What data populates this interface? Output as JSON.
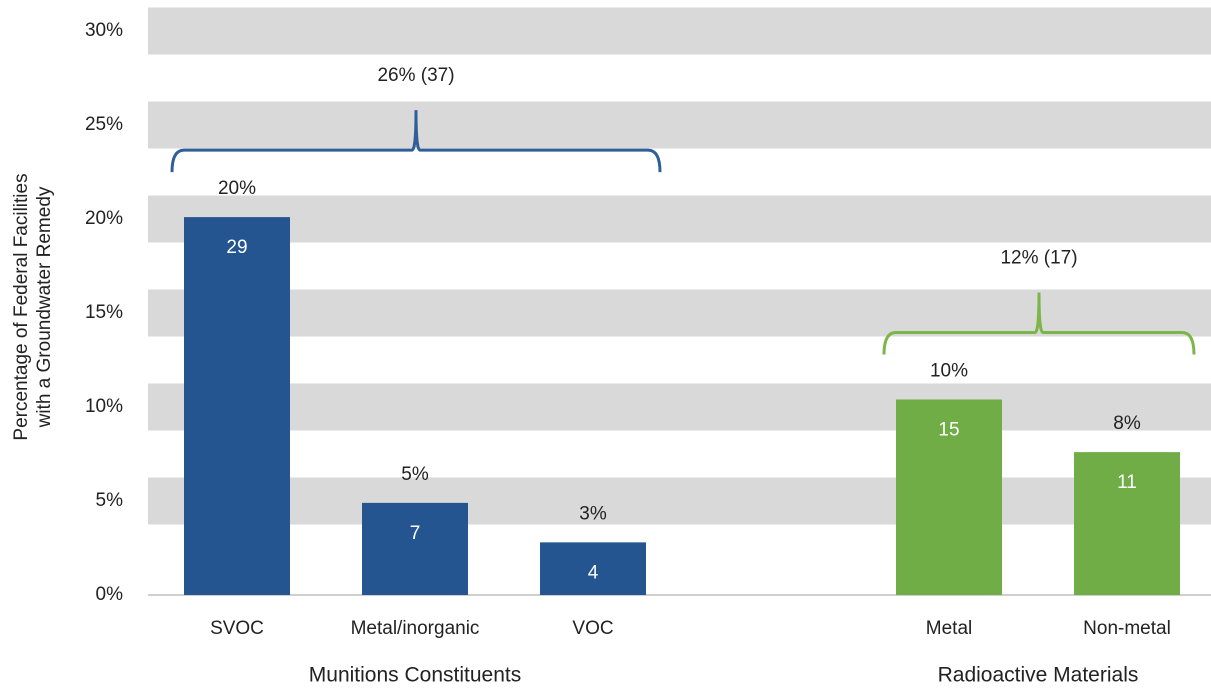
{
  "chart_data": {
    "type": "bar",
    "ylabel": [
      "Percentage of Federal Facilities",
      "with a Groundwater Remedy"
    ],
    "ylim": [
      0,
      30
    ],
    "yticks": [
      {
        "value": 0,
        "label": "0%"
      },
      {
        "value": 5,
        "label": "5%"
      },
      {
        "value": 10,
        "label": "10%"
      },
      {
        "value": 15,
        "label": "15%"
      },
      {
        "value": 20,
        "label": "20%"
      },
      {
        "value": 25,
        "label": "25%"
      },
      {
        "value": 30,
        "label": "30%"
      }
    ],
    "grid": "bands",
    "groups": [
      {
        "name": "Munitions Constituents",
        "color": "#245591",
        "bracket_color": "#2f5f99",
        "bracket_label": "26% (37)",
        "categories": [
          "SVOC",
          "Metal/inorganic",
          "VOC"
        ],
        "values": [
          20.1,
          4.9,
          2.8
        ],
        "value_labels": [
          "20%",
          "5%",
          "3%"
        ],
        "counts": [
          29,
          7,
          4
        ]
      },
      {
        "name": "Radioactive Materials",
        "color": "#70ad47",
        "bracket_color": "#7ab648",
        "bracket_label": "12% (17)",
        "categories": [
          "Metal",
          "Non-metal"
        ],
        "values": [
          10.4,
          7.6
        ],
        "value_labels": [
          "10%",
          "8%"
        ],
        "counts": [
          15,
          11
        ]
      }
    ]
  }
}
